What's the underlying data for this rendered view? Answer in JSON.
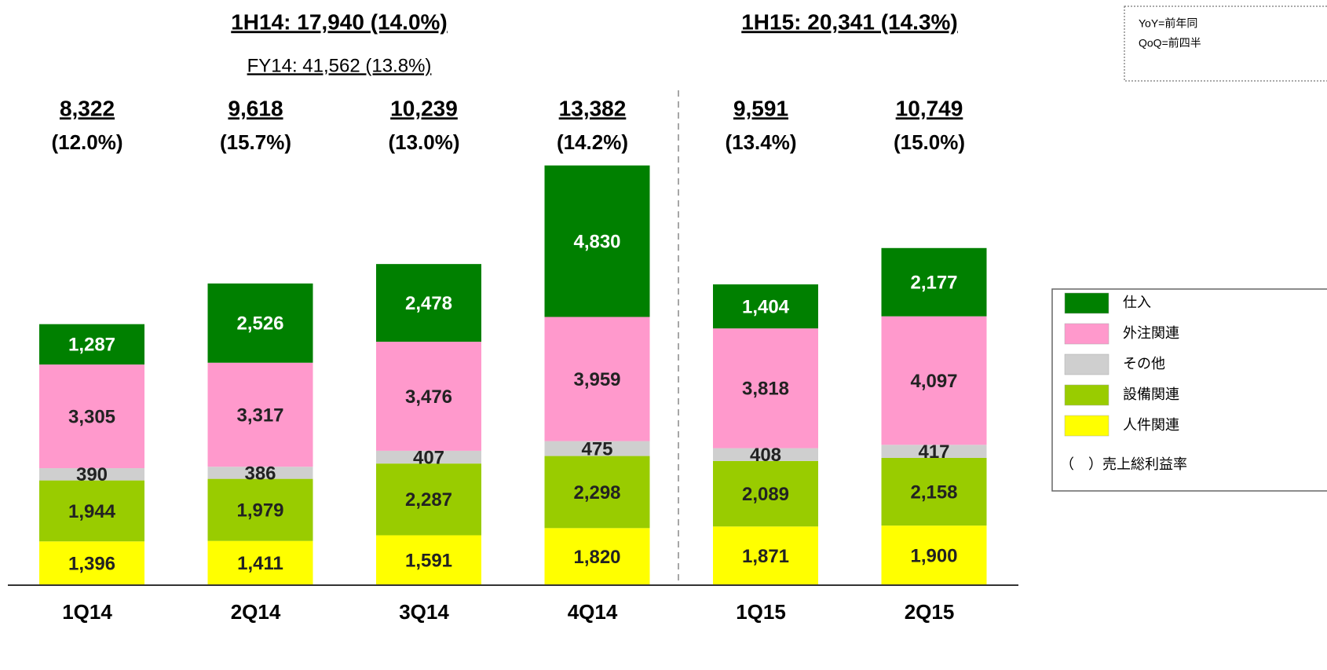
{
  "chart_data": {
    "type": "stacked_bar",
    "group_titles": [
      "1H14: 17,940 (14.0%)",
      "1H15: 20,341 (14.3%)"
    ],
    "subtitle": "FY14: 41,562 (13.8%)",
    "notes": [
      "YoY=前年同",
      "QoQ=前四半"
    ],
    "categories": [
      "1Q14",
      "2Q14",
      "3Q14",
      "4Q14",
      "1Q15",
      "2Q15"
    ],
    "totals": [
      "8,322",
      "9,618",
      "10,239",
      "13,382",
      "9,591",
      "10,749"
    ],
    "margins": [
      "(12.0%)",
      "(15.7%)",
      "(13.0%)",
      "(14.2%)",
      "(13.4%)",
      "(15.0%)"
    ],
    "series": [
      {
        "name": "人件関連",
        "color": "#ffff00",
        "label_color": "#222222",
        "values": [
          1396,
          1411,
          1591,
          1820,
          1871,
          1900
        ],
        "value_labels": [
          "1,396",
          "1,411",
          "1,591",
          "1,820",
          "1,871",
          "1,900"
        ]
      },
      {
        "name": "設備関連",
        "color": "#99cc00",
        "label_color": "#222222",
        "values": [
          1944,
          1979,
          2287,
          2298,
          2089,
          2158
        ],
        "value_labels": [
          "1,944",
          "1,979",
          "2,287",
          "2,298",
          "2,089",
          "2,158"
        ]
      },
      {
        "name": "その他",
        "color": "#cfcfcf",
        "label_color": "#222222",
        "values": [
          390,
          386,
          407,
          475,
          408,
          417
        ],
        "value_labels": [
          "390",
          "386",
          "407",
          "475",
          "408",
          "417"
        ]
      },
      {
        "name": "外注関連",
        "color": "#ff99cc",
        "label_color": "#222222",
        "values": [
          3305,
          3317,
          3476,
          3959,
          3818,
          4097
        ],
        "value_labels": [
          "3,305",
          "3,317",
          "3,476",
          "3,959",
          "3,818",
          "4,097"
        ]
      },
      {
        "name": "仕入",
        "color": "#008000",
        "label_color": "#ffffff",
        "values": [
          1287,
          2526,
          2478,
          4830,
          1404,
          2177
        ],
        "value_labels": [
          "1,287",
          "2,526",
          "2,478",
          "4,830",
          "1,404",
          "2,177"
        ]
      }
    ],
    "legend_note": "（　）売上総利益率",
    "ylim": [
      0,
      14500
    ]
  }
}
